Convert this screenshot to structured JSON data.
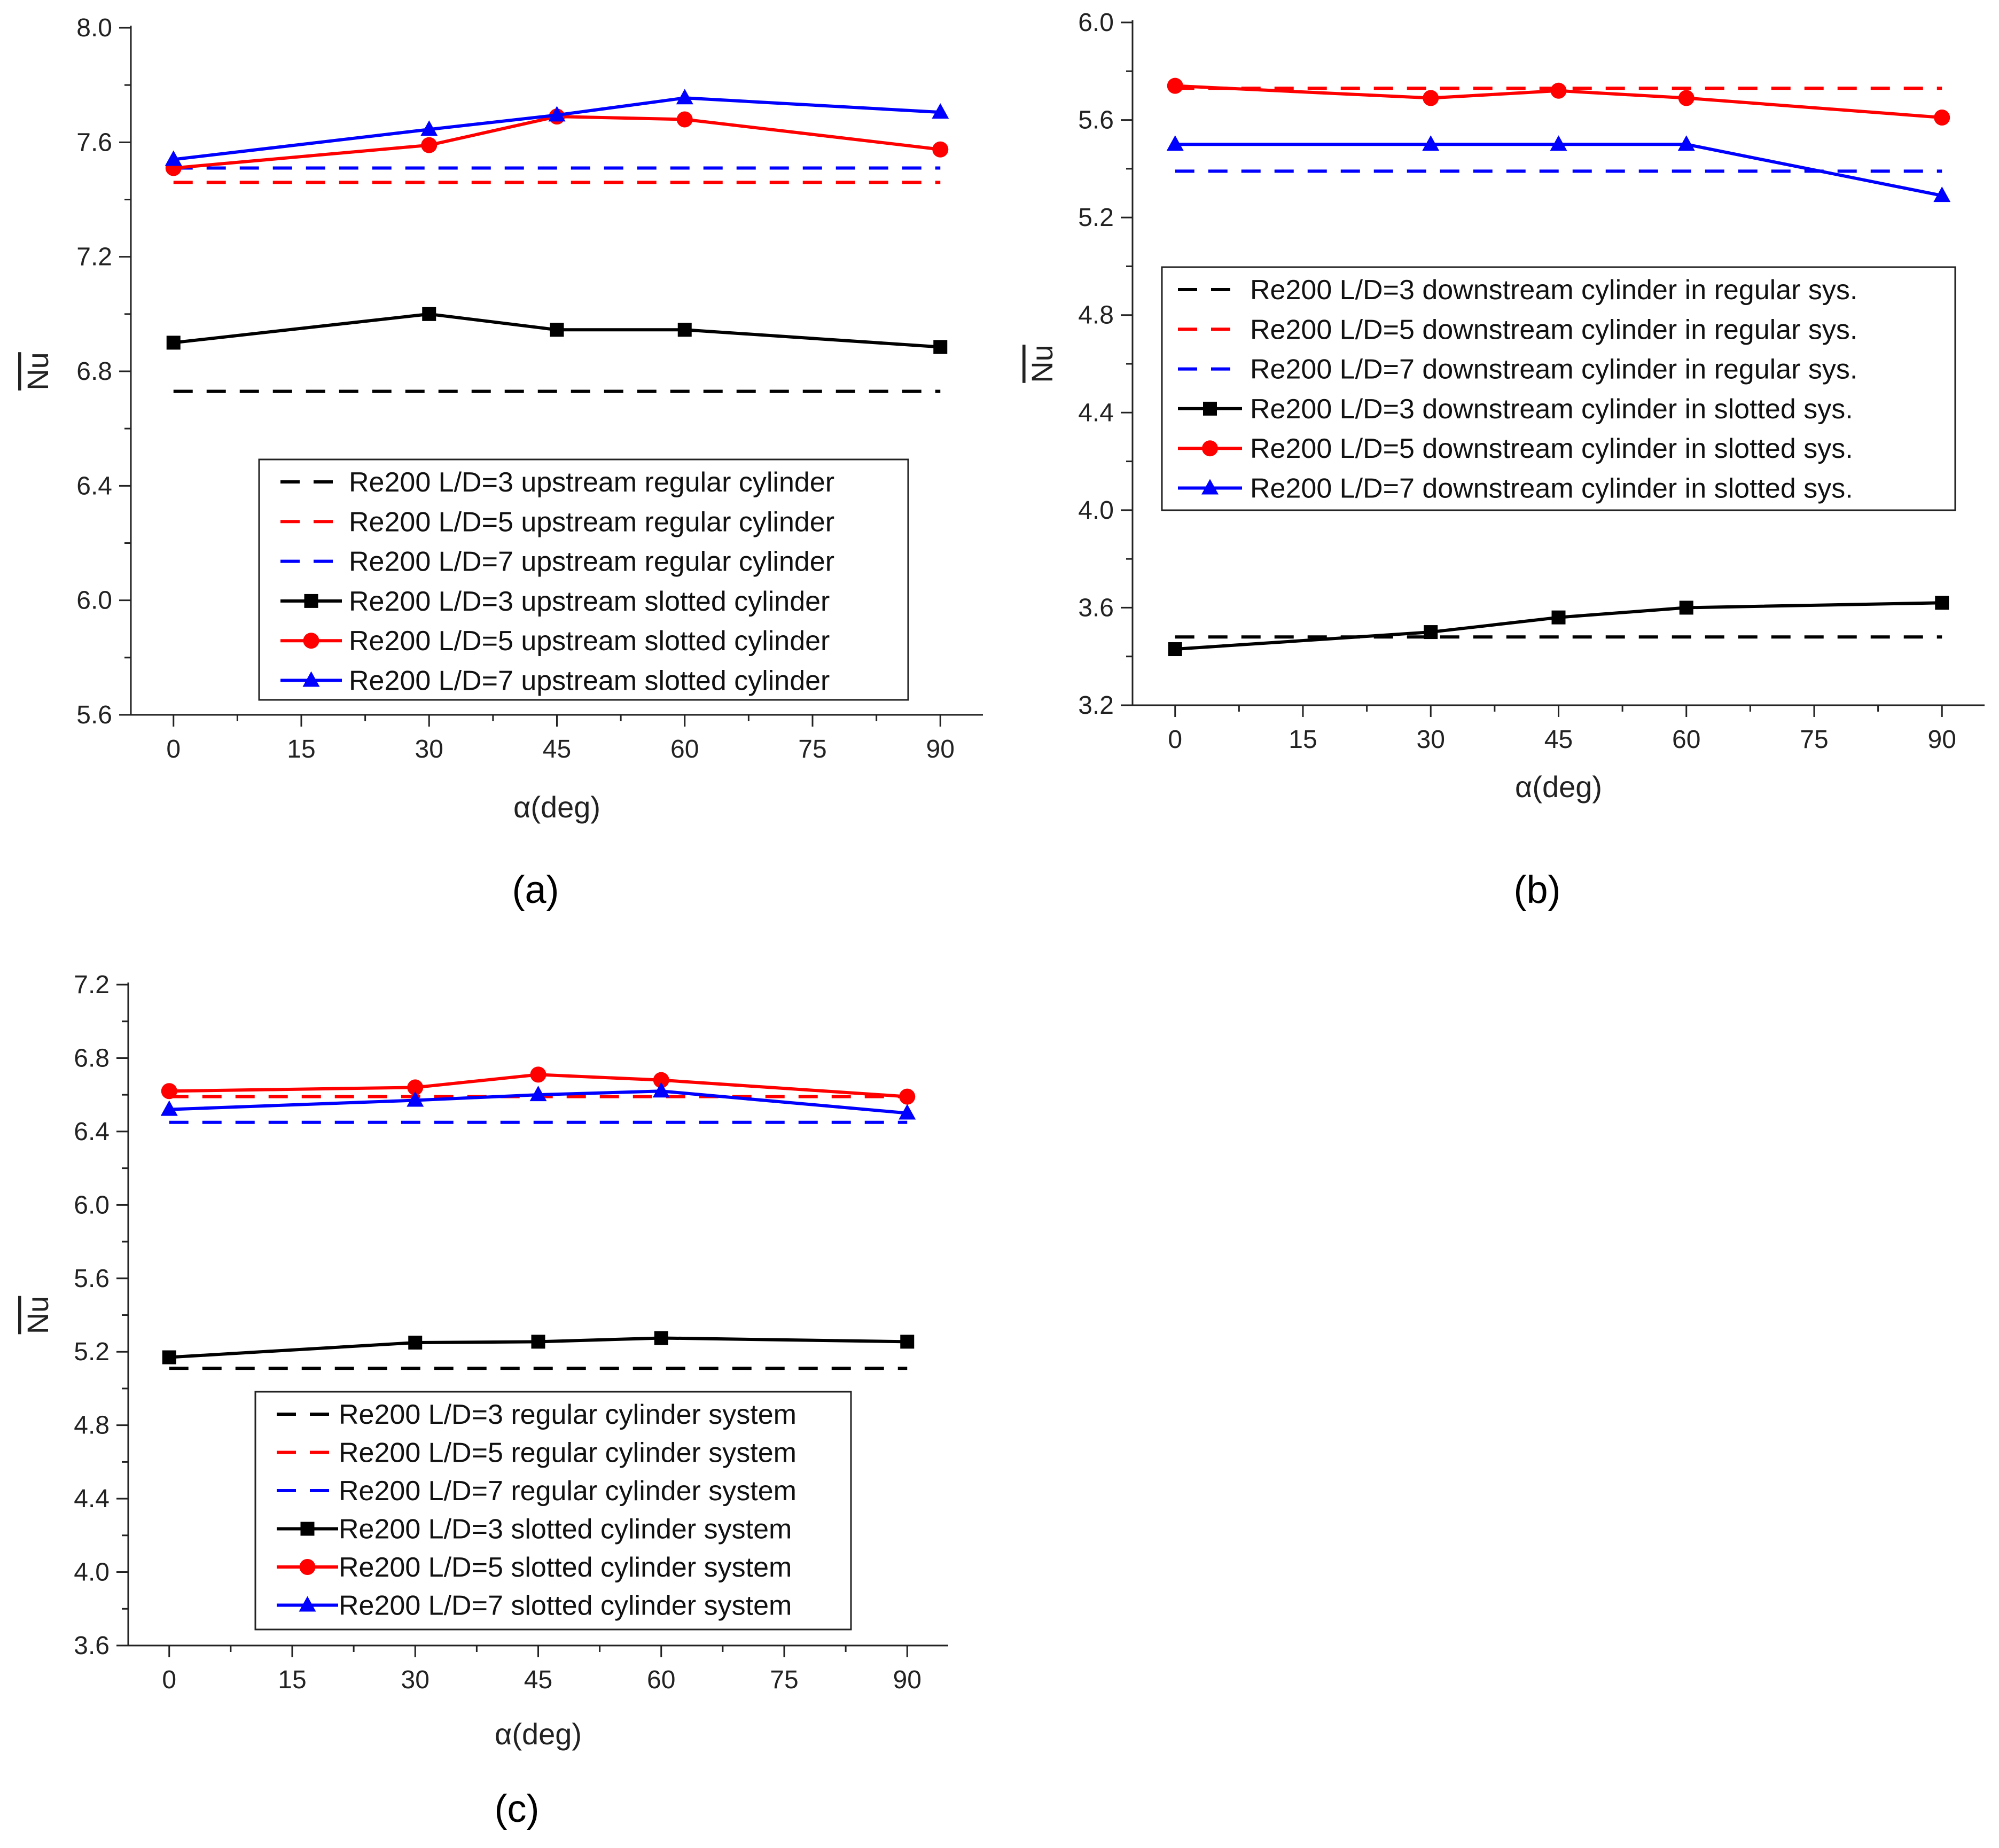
{
  "chart_data": [
    {
      "type": "line",
      "panel_label": "(a)",
      "xlabel": "α(deg)",
      "ylabel": "Nu",
      "x_ticks": [
        0,
        15,
        30,
        45,
        60,
        75,
        90
      ],
      "y_ticks": [
        5.6,
        6.0,
        6.4,
        6.8,
        7.2,
        7.6,
        8.0
      ],
      "y_tick_labels": [
        "5.6",
        "6.0",
        "6.4",
        "6.8",
        "7.2",
        "7.6",
        "8.0"
      ],
      "xlim": [
        -5,
        95
      ],
      "ylim": [
        5.6,
        8.0
      ],
      "legend_position": "lower-center",
      "series": [
        {
          "name": "Re200 L/D=3 upstream regular cylinder",
          "style": "dashed",
          "marker": "none",
          "color": "#000000",
          "x": [
            0,
            90
          ],
          "values": [
            6.73,
            6.73
          ]
        },
        {
          "name": "Re200 L/D=5 upstream regular cylinder",
          "style": "dashed",
          "marker": "none",
          "color": "#ff0000",
          "x": [
            0,
            90
          ],
          "values": [
            7.46,
            7.46
          ]
        },
        {
          "name": "Re200 L/D=7 upstream regular cylinder",
          "style": "dashed",
          "marker": "none",
          "color": "#0000ff",
          "x": [
            0,
            90
          ],
          "values": [
            7.51,
            7.51
          ]
        },
        {
          "name": "Re200 L/D=3 upstream slotted cylinder",
          "style": "solid",
          "marker": "square",
          "color": "#000000",
          "x": [
            0,
            30,
            45,
            60,
            90
          ],
          "values": [
            6.9,
            7.0,
            6.945,
            6.945,
            6.885
          ]
        },
        {
          "name": "Re200 L/D=5 upstream slotted cylinder",
          "style": "solid",
          "marker": "circle",
          "color": "#ff0000",
          "x": [
            0,
            30,
            45,
            60,
            90
          ],
          "values": [
            7.51,
            7.59,
            7.69,
            7.68,
            7.575
          ]
        },
        {
          "name": "Re200 L/D=7 upstream slotted cylinder",
          "style": "solid",
          "marker": "triangle",
          "color": "#0000ff",
          "x": [
            0,
            30,
            45,
            60,
            90
          ],
          "values": [
            7.54,
            7.645,
            7.695,
            7.755,
            7.705
          ]
        }
      ]
    },
    {
      "type": "line",
      "panel_label": "(b)",
      "xlabel": "α(deg)",
      "ylabel": "Nu",
      "x_ticks": [
        0,
        15,
        30,
        45,
        60,
        75,
        90
      ],
      "y_ticks": [
        3.2,
        3.6,
        4.0,
        4.4,
        4.8,
        5.2,
        5.6,
        6.0
      ],
      "y_tick_labels": [
        "3.2",
        "3.6",
        "4.0",
        "4.4",
        "4.8",
        "5.2",
        "5.6",
        "6.0"
      ],
      "xlim": [
        -5,
        95
      ],
      "ylim": [
        3.2,
        6.0
      ],
      "legend_position": "center",
      "series": [
        {
          "name": "Re200 L/D=3 downstream cylinder in regular sys.",
          "style": "dashed",
          "marker": "none",
          "color": "#000000",
          "x": [
            0,
            90
          ],
          "values": [
            3.48,
            3.48
          ]
        },
        {
          "name": "Re200 L/D=5 downstream cylinder in regular sys.",
          "style": "dashed",
          "marker": "none",
          "color": "#ff0000",
          "x": [
            0,
            90
          ],
          "values": [
            5.73,
            5.73
          ]
        },
        {
          "name": "Re200 L/D=7 downstream cylinder in regular sys.",
          "style": "dashed",
          "marker": "none",
          "color": "#0000ff",
          "x": [
            0,
            90
          ],
          "values": [
            5.39,
            5.39
          ]
        },
        {
          "name": "Re200 L/D=3 downstream cylinder in slotted sys.",
          "style": "solid",
          "marker": "square",
          "color": "#000000",
          "x": [
            0,
            30,
            45,
            60,
            90
          ],
          "values": [
            3.43,
            3.5,
            3.56,
            3.6,
            3.62
          ]
        },
        {
          "name": "Re200 L/D=5 downstream cylinder in slotted sys.",
          "style": "solid",
          "marker": "circle",
          "color": "#ff0000",
          "x": [
            0,
            30,
            45,
            60,
            90
          ],
          "values": [
            5.74,
            5.69,
            5.72,
            5.69,
            5.61
          ]
        },
        {
          "name": "Re200 L/D=7 downstream cylinder in slotted sys.",
          "style": "solid",
          "marker": "triangle",
          "color": "#0000ff",
          "x": [
            0,
            30,
            45,
            60,
            90
          ],
          "values": [
            5.5,
            5.5,
            5.5,
            5.5,
            5.29
          ]
        }
      ]
    },
    {
      "type": "line",
      "panel_label": "(c)",
      "xlabel": "α(deg)",
      "ylabel": "Nu",
      "x_ticks": [
        0,
        15,
        30,
        45,
        60,
        75,
        90
      ],
      "y_ticks": [
        3.6,
        4.0,
        4.4,
        4.8,
        5.2,
        5.6,
        6.0,
        6.4,
        6.8,
        7.2
      ],
      "y_tick_labels": [
        "3.6",
        "4.0",
        "4.4",
        "4.8",
        "5.2",
        "5.6",
        "6.0",
        "6.4",
        "6.8",
        "7.2"
      ],
      "xlim": [
        -5,
        95
      ],
      "ylim": [
        3.6,
        7.2
      ],
      "legend_position": "lower-center",
      "series": [
        {
          "name": "Re200 L/D=3 regular cylinder system",
          "style": "dashed",
          "marker": "none",
          "color": "#000000",
          "x": [
            0,
            90
          ],
          "values": [
            5.11,
            5.11
          ]
        },
        {
          "name": "Re200 L/D=5 regular cylinder system",
          "style": "dashed",
          "marker": "none",
          "color": "#ff0000",
          "x": [
            0,
            90
          ],
          "values": [
            6.59,
            6.59
          ]
        },
        {
          "name": "Re200 L/D=7 regular cylinder system",
          "style": "dashed",
          "marker": "none",
          "color": "#0000ff",
          "x": [
            0,
            90
          ],
          "values": [
            6.45,
            6.45
          ]
        },
        {
          "name": "Re200 L/D=3 slotted cylinder system",
          "style": "solid",
          "marker": "square",
          "color": "#000000",
          "x": [
            0,
            30,
            45,
            60,
            90
          ],
          "values": [
            5.17,
            5.25,
            5.255,
            5.275,
            5.255
          ]
        },
        {
          "name": "Re200 L/D=5 slotted cylinder system",
          "style": "solid",
          "marker": "circle",
          "color": "#ff0000",
          "x": [
            0,
            30,
            45,
            60,
            90
          ],
          "values": [
            6.62,
            6.64,
            6.71,
            6.68,
            6.59
          ]
        },
        {
          "name": "Re200 L/D=7 slotted cylinder system",
          "style": "solid",
          "marker": "triangle",
          "color": "#0000ff",
          "x": [
            0,
            30,
            45,
            60,
            90
          ],
          "values": [
            6.52,
            6.57,
            6.6,
            6.62,
            6.5
          ]
        }
      ]
    }
  ]
}
